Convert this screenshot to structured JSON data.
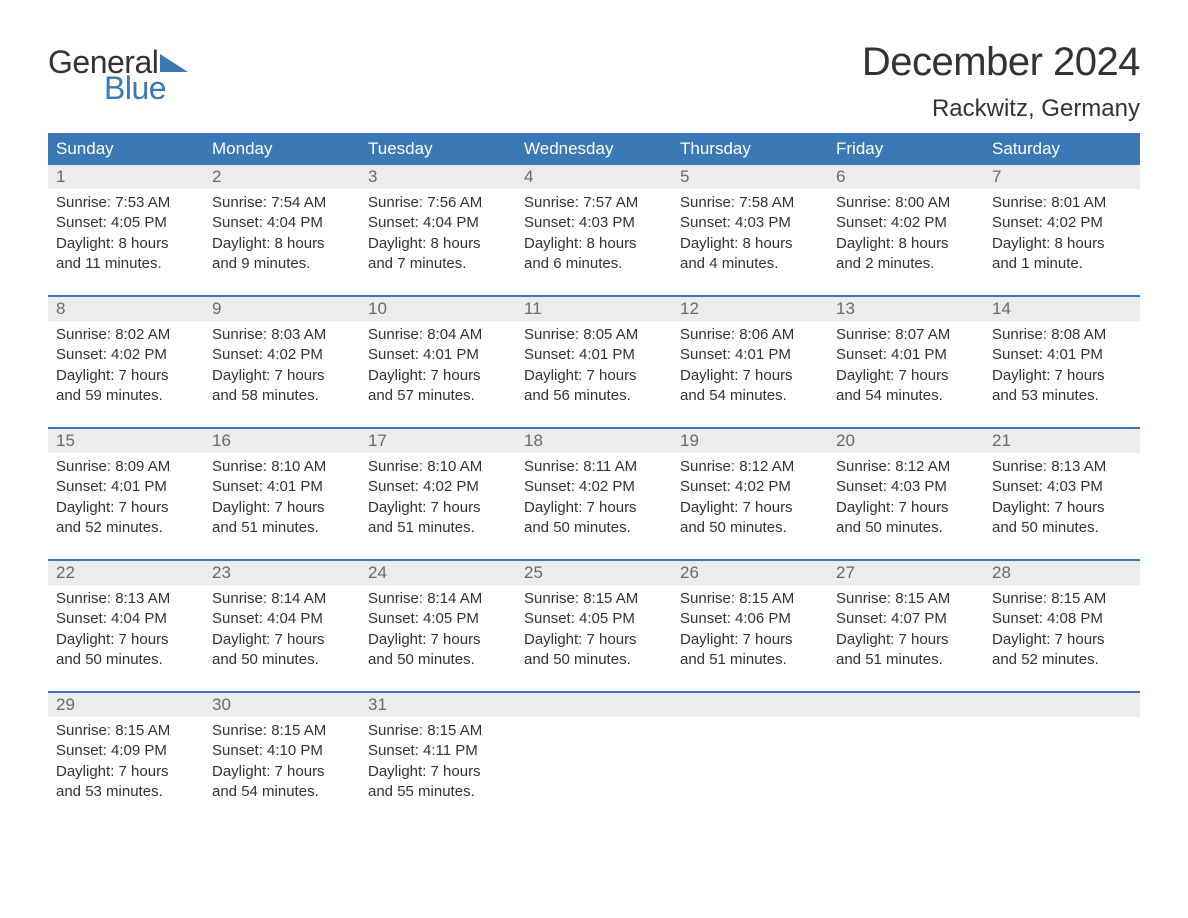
{
  "logo": {
    "part1": "General",
    "part2": "Blue",
    "triangle_color": "#3a78b6"
  },
  "title": "December 2024",
  "location": "Rackwitz, Germany",
  "colors": {
    "header_bg": "#3a78b6",
    "header_text": "#ffffff",
    "daynum_bg": "#ececec",
    "daynum_text": "#6b6b6b",
    "body_text": "#333333",
    "week_divider": "#3a78b6",
    "page_bg": "#ffffff"
  },
  "day_headers": [
    "Sunday",
    "Monday",
    "Tuesday",
    "Wednesday",
    "Thursday",
    "Friday",
    "Saturday"
  ],
  "weeks": [
    [
      {
        "n": "1",
        "sunrise": "7:53 AM",
        "sunset": "4:05 PM",
        "daylight": "8 hours and 11 minutes."
      },
      {
        "n": "2",
        "sunrise": "7:54 AM",
        "sunset": "4:04 PM",
        "daylight": "8 hours and 9 minutes."
      },
      {
        "n": "3",
        "sunrise": "7:56 AM",
        "sunset": "4:04 PM",
        "daylight": "8 hours and 7 minutes."
      },
      {
        "n": "4",
        "sunrise": "7:57 AM",
        "sunset": "4:03 PM",
        "daylight": "8 hours and 6 minutes."
      },
      {
        "n": "5",
        "sunrise": "7:58 AM",
        "sunset": "4:03 PM",
        "daylight": "8 hours and 4 minutes."
      },
      {
        "n": "6",
        "sunrise": "8:00 AM",
        "sunset": "4:02 PM",
        "daylight": "8 hours and 2 minutes."
      },
      {
        "n": "7",
        "sunrise": "8:01 AM",
        "sunset": "4:02 PM",
        "daylight": "8 hours and 1 minute."
      }
    ],
    [
      {
        "n": "8",
        "sunrise": "8:02 AM",
        "sunset": "4:02 PM",
        "daylight": "7 hours and 59 minutes."
      },
      {
        "n": "9",
        "sunrise": "8:03 AM",
        "sunset": "4:02 PM",
        "daylight": "7 hours and 58 minutes."
      },
      {
        "n": "10",
        "sunrise": "8:04 AM",
        "sunset": "4:01 PM",
        "daylight": "7 hours and 57 minutes."
      },
      {
        "n": "11",
        "sunrise": "8:05 AM",
        "sunset": "4:01 PM",
        "daylight": "7 hours and 56 minutes."
      },
      {
        "n": "12",
        "sunrise": "8:06 AM",
        "sunset": "4:01 PM",
        "daylight": "7 hours and 54 minutes."
      },
      {
        "n": "13",
        "sunrise": "8:07 AM",
        "sunset": "4:01 PM",
        "daylight": "7 hours and 54 minutes."
      },
      {
        "n": "14",
        "sunrise": "8:08 AM",
        "sunset": "4:01 PM",
        "daylight": "7 hours and 53 minutes."
      }
    ],
    [
      {
        "n": "15",
        "sunrise": "8:09 AM",
        "sunset": "4:01 PM",
        "daylight": "7 hours and 52 minutes."
      },
      {
        "n": "16",
        "sunrise": "8:10 AM",
        "sunset": "4:01 PM",
        "daylight": "7 hours and 51 minutes."
      },
      {
        "n": "17",
        "sunrise": "8:10 AM",
        "sunset": "4:02 PM",
        "daylight": "7 hours and 51 minutes."
      },
      {
        "n": "18",
        "sunrise": "8:11 AM",
        "sunset": "4:02 PM",
        "daylight": "7 hours and 50 minutes."
      },
      {
        "n": "19",
        "sunrise": "8:12 AM",
        "sunset": "4:02 PM",
        "daylight": "7 hours and 50 minutes."
      },
      {
        "n": "20",
        "sunrise": "8:12 AM",
        "sunset": "4:03 PM",
        "daylight": "7 hours and 50 minutes."
      },
      {
        "n": "21",
        "sunrise": "8:13 AM",
        "sunset": "4:03 PM",
        "daylight": "7 hours and 50 minutes."
      }
    ],
    [
      {
        "n": "22",
        "sunrise": "8:13 AM",
        "sunset": "4:04 PM",
        "daylight": "7 hours and 50 minutes."
      },
      {
        "n": "23",
        "sunrise": "8:14 AM",
        "sunset": "4:04 PM",
        "daylight": "7 hours and 50 minutes."
      },
      {
        "n": "24",
        "sunrise": "8:14 AM",
        "sunset": "4:05 PM",
        "daylight": "7 hours and 50 minutes."
      },
      {
        "n": "25",
        "sunrise": "8:15 AM",
        "sunset": "4:05 PM",
        "daylight": "7 hours and 50 minutes."
      },
      {
        "n": "26",
        "sunrise": "8:15 AM",
        "sunset": "4:06 PM",
        "daylight": "7 hours and 51 minutes."
      },
      {
        "n": "27",
        "sunrise": "8:15 AM",
        "sunset": "4:07 PM",
        "daylight": "7 hours and 51 minutes."
      },
      {
        "n": "28",
        "sunrise": "8:15 AM",
        "sunset": "4:08 PM",
        "daylight": "7 hours and 52 minutes."
      }
    ],
    [
      {
        "n": "29",
        "sunrise": "8:15 AM",
        "sunset": "4:09 PM",
        "daylight": "7 hours and 53 minutes."
      },
      {
        "n": "30",
        "sunrise": "8:15 AM",
        "sunset": "4:10 PM",
        "daylight": "7 hours and 54 minutes."
      },
      {
        "n": "31",
        "sunrise": "8:15 AM",
        "sunset": "4:11 PM",
        "daylight": "7 hours and 55 minutes."
      },
      null,
      null,
      null,
      null
    ]
  ],
  "labels": {
    "sunrise": "Sunrise:",
    "sunset": "Sunset:",
    "daylight": "Daylight:"
  }
}
